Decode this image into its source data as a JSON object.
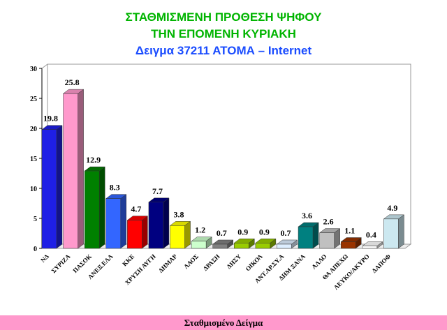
{
  "chart_data": {
    "type": "bar3d",
    "title": "ΣΤΑΘΜΙΣΜΕΝΗ ΠΡΟΘΕΣΗ ΨΗΦΟΥ",
    "subtitle": "ΤΗΝ ΕΠΟΜΕΝΗ ΚΥΡΙΑΚΗ",
    "subtitle2": "Δειγμα 37211 ΑΤΟΜΑ – Internet",
    "footer": "Σταθμισμένο Δείγμα",
    "categories": [
      "ΝΔ",
      "ΣΥΡΙΖΑ",
      "ΠΑΣΟΚ",
      "ΑΝΕΞ.ΕΛΛ",
      "ΚΚΕ",
      "ΧΡΥΣΗ ΑΥΓΗ",
      "ΔΗΜΑΡ",
      "ΛΑΟΣ",
      "ΔΡΑΣΗ",
      "ΔΗΣΥ",
      "ΟΙΚΟΛ",
      "ΑΝΤ.ΑΡ.ΣΥ.Α",
      "ΔΗΜ ΞΑΝΑ",
      "ΑΛΛΟ",
      "ΘΑ ΑΠΕΧΩ",
      "ΛΕΥΚΟ/ΑΚΥΡΟ",
      "ΔΑΠΟΦ"
    ],
    "values": [
      19.8,
      25.8,
      12.9,
      8.3,
      4.7,
      7.7,
      3.8,
      1.2,
      0.7,
      0.9,
      0.9,
      0.7,
      3.6,
      2.6,
      1.1,
      0.4,
      4.9
    ],
    "colors": [
      "#1f1fe6",
      "#ff99cc",
      "#008000",
      "#3366ff",
      "#ff0000",
      "#000080",
      "#ffff00",
      "#ccffcc",
      "#808080",
      "#99cc00",
      "#99cc00",
      "#ddeeff",
      "#008080",
      "#c0c0c0",
      "#993300",
      "#ffffff",
      "#cce8f0"
    ],
    "ylim": [
      0,
      30
    ],
    "yticks": [
      0,
      5,
      10,
      15,
      20,
      25,
      30
    ]
  }
}
